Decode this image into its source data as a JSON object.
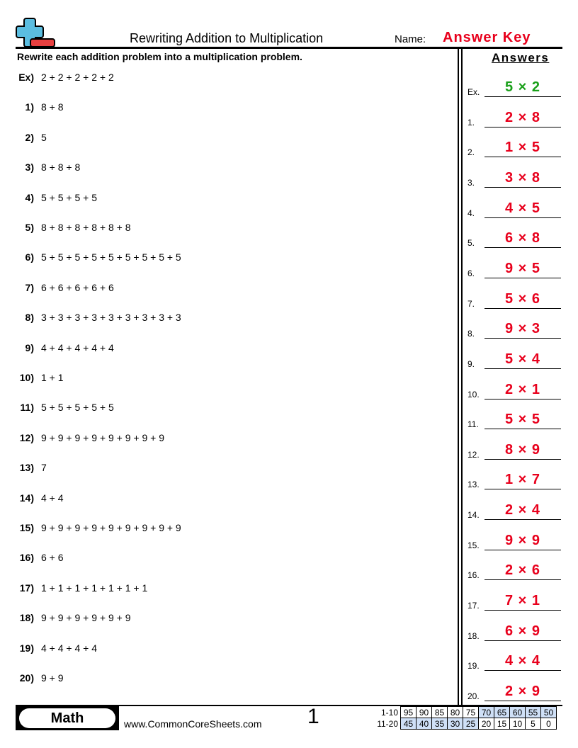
{
  "header": {
    "title": "Rewriting Addition to Multiplication",
    "name_label": "Name:",
    "name_value": "Answer Key",
    "logo": "plus-minus-logo",
    "logo_colors": {
      "plus": "#5bbde0",
      "minus": "#e84040"
    }
  },
  "instructions": "Rewrite each addition problem into a multiplication problem.",
  "answers_heading": "Answers",
  "problems": [
    {
      "num": "Ex)",
      "expr": "2 + 2 + 2 + 2 + 2"
    },
    {
      "num": "1)",
      "expr": "8 + 8"
    },
    {
      "num": "2)",
      "expr": "5"
    },
    {
      "num": "3)",
      "expr": "8 + 8 + 8"
    },
    {
      "num": "4)",
      "expr": "5 + 5 + 5 + 5"
    },
    {
      "num": "5)",
      "expr": "8 + 8 + 8 + 8 + 8 + 8"
    },
    {
      "num": "6)",
      "expr": "5 + 5 + 5 + 5 + 5 + 5 + 5 + 5 + 5"
    },
    {
      "num": "7)",
      "expr": "6 + 6 + 6 + 6 + 6"
    },
    {
      "num": "8)",
      "expr": "3 + 3 + 3 + 3 + 3 + 3 + 3 + 3 + 3"
    },
    {
      "num": "9)",
      "expr": "4 + 4 + 4 + 4 + 4"
    },
    {
      "num": "10)",
      "expr": "1 + 1"
    },
    {
      "num": "11)",
      "expr": "5 + 5 + 5 + 5 + 5"
    },
    {
      "num": "12)",
      "expr": "9 + 9 + 9 + 9 + 9 + 9 + 9 + 9"
    },
    {
      "num": "13)",
      "expr": "7"
    },
    {
      "num": "14)",
      "expr": "4 + 4"
    },
    {
      "num": "15)",
      "expr": "9 + 9 + 9 + 9 + 9 + 9 + 9 + 9 + 9"
    },
    {
      "num": "16)",
      "expr": "6 + 6"
    },
    {
      "num": "17)",
      "expr": "1 + 1 + 1 + 1 + 1 + 1 + 1"
    },
    {
      "num": "18)",
      "expr": "9 + 9 + 9 + 9 + 9 + 9"
    },
    {
      "num": "19)",
      "expr": "4 + 4 + 4 + 4"
    },
    {
      "num": "20)",
      "expr": "9 + 9"
    }
  ],
  "answers": [
    {
      "label": "Ex.",
      "value": "5 × 2"
    },
    {
      "label": "1.",
      "value": "2 × 8"
    },
    {
      "label": "2.",
      "value": "1 × 5"
    },
    {
      "label": "3.",
      "value": "3 × 8"
    },
    {
      "label": "4.",
      "value": "4 × 5"
    },
    {
      "label": "5.",
      "value": "6 × 8"
    },
    {
      "label": "6.",
      "value": "9 × 5"
    },
    {
      "label": "7.",
      "value": "5 × 6"
    },
    {
      "label": "8.",
      "value": "9 × 3"
    },
    {
      "label": "9.",
      "value": "5 × 4"
    },
    {
      "label": "10.",
      "value": "2 × 1"
    },
    {
      "label": "11.",
      "value": "5 × 5"
    },
    {
      "label": "12.",
      "value": "8 × 9"
    },
    {
      "label": "13.",
      "value": "1 × 7"
    },
    {
      "label": "14.",
      "value": "2 × 4"
    },
    {
      "label": "15.",
      "value": "9 × 9"
    },
    {
      "label": "16.",
      "value": "2 × 6"
    },
    {
      "label": "17.",
      "value": "7 × 1"
    },
    {
      "label": "18.",
      "value": "6 × 9"
    },
    {
      "label": "19.",
      "value": "4 × 4"
    },
    {
      "label": "20.",
      "value": "2 × 9"
    }
  ],
  "footer": {
    "subject": "Math",
    "website": "www.CommonCoreSheets.com",
    "page": "1",
    "score_rows": [
      {
        "label": "1-10",
        "cells": [
          "95",
          "90",
          "85",
          "80",
          "75",
          "70",
          "65",
          "60",
          "55",
          "50"
        ],
        "highlighted_from": 5,
        "highlighted_to": 9
      },
      {
        "label": "11-20",
        "cells": [
          "45",
          "40",
          "35",
          "30",
          "25",
          "20",
          "15",
          "10",
          "5",
          "0"
        ],
        "highlighted_from": 0,
        "highlighted_to": 4
      }
    ],
    "highlight_color": "#cfe0f7"
  }
}
